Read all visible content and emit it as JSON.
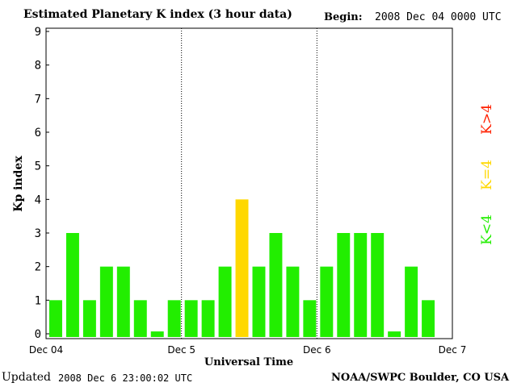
{
  "header": {
    "title": "Estimated Planetary K index (3 hour data)",
    "begin_label": "Begin:",
    "begin_value": "2008 Dec 04 0000 UTC"
  },
  "footer": {
    "updated_label": "Updated",
    "updated_value": "2008 Dec  6 23:00:02 UTC",
    "source": "NOAA/SWPC Boulder, CO USA"
  },
  "legend": {
    "items": [
      {
        "label": "K<4",
        "color": "#22ee00"
      },
      {
        "label": "K=4",
        "color": "#ffd800"
      },
      {
        "label": "K>4",
        "color": "#ff2000"
      }
    ]
  },
  "chart_data": {
    "type": "bar",
    "title": "Estimated Planetary K index (3 hour data)",
    "xlabel": "Universal Time",
    "ylabel": "Kp index",
    "ylim": [
      0,
      9
    ],
    "yticks": [
      "0",
      "1",
      "2",
      "3",
      "4",
      "5",
      "6",
      "7",
      "8",
      "9"
    ],
    "xticks": [
      "Dec 04",
      "Dec 5",
      "Dec 6",
      "Dec 7"
    ],
    "grid": "vertical dotted day separators",
    "interval_hours": 3,
    "values": [
      1,
      3,
      1,
      2,
      2,
      1,
      0.07,
      1,
      1,
      1,
      2,
      4,
      2,
      3,
      2,
      1,
      2,
      3,
      3,
      3,
      0.07,
      2,
      1
    ],
    "colors": {
      "low": "#22ee00",
      "equal": "#ffd800",
      "high": "#ff2000"
    }
  }
}
